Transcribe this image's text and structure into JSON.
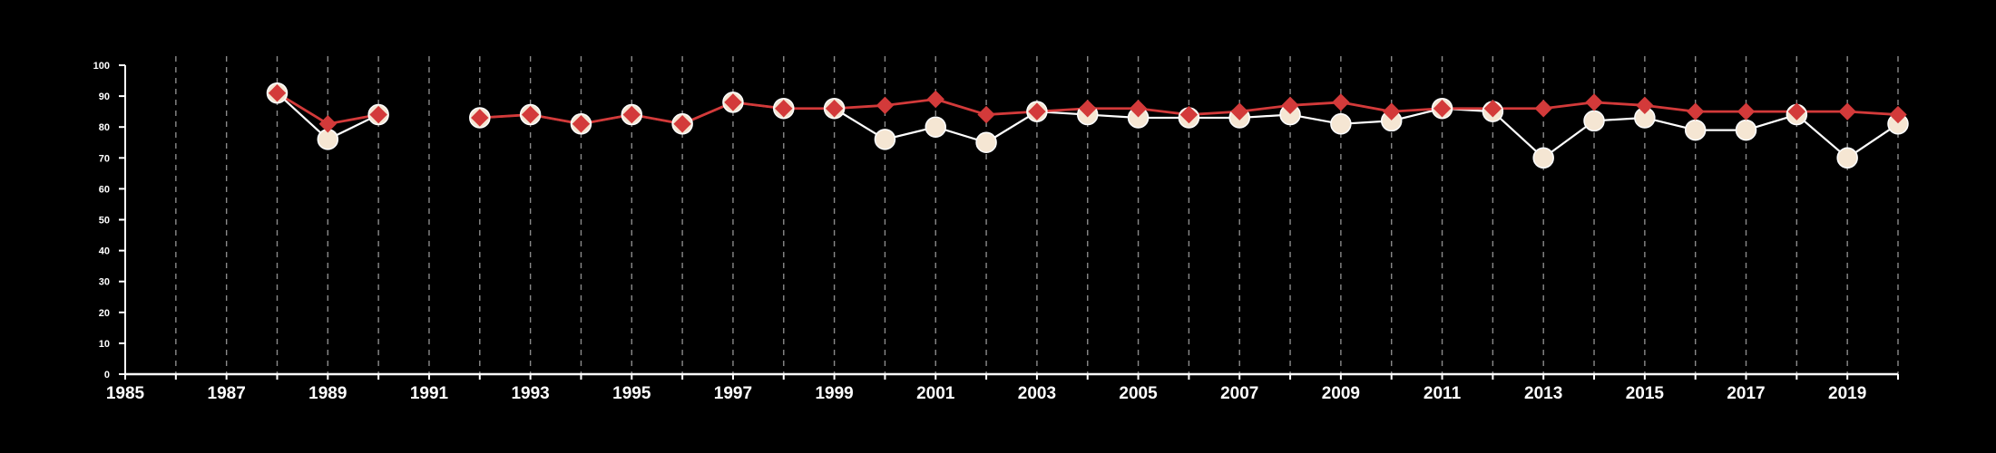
{
  "chart_data": {
    "type": "line",
    "title": "",
    "xlabel": "",
    "ylabel": "",
    "xlim": [
      1985,
      2020
    ],
    "ylim": [
      0,
      100
    ],
    "x_ticks": [
      1985,
      1987,
      1989,
      1991,
      1993,
      1995,
      1997,
      1999,
      2001,
      2003,
      2005,
      2007,
      2009,
      2011,
      2013,
      2015,
      2017,
      2019
    ],
    "x_tick_labels": [
      "1985",
      "1987",
      "1989",
      "1991",
      "1993",
      "1995",
      "1997",
      "1999",
      "2001",
      "2003",
      "2005",
      "2007",
      "2009",
      "2011",
      "2013",
      "2015",
      "2017",
      "2019"
    ],
    "y_ticks": [
      0,
      10,
      20,
      30,
      40,
      50,
      60,
      70,
      80,
      90,
      100
    ],
    "y_tick_labels": [
      "0",
      "10",
      "20",
      "30",
      "40",
      "50",
      "60",
      "70",
      "80",
      "90",
      "100"
    ],
    "vertical_grid_years": [
      1986,
      1987,
      1988,
      1989,
      1990,
      1991,
      1992,
      1993,
      1994,
      1995,
      1996,
      1997,
      1998,
      1999,
      2000,
      2001,
      2002,
      2003,
      2004,
      2005,
      2006,
      2007,
      2008,
      2009,
      2010,
      2011,
      2012,
      2013,
      2014,
      2015,
      2016,
      2017,
      2018,
      2019,
      2020
    ],
    "grid": "vertical dashed",
    "legend": "none",
    "series": [
      {
        "color": "#f5e6d3",
        "line_color": "#ffffff",
        "marker": "circle",
        "segments": [
          {
            "x": [
              1988,
              1989,
              1990
            ],
            "y": [
              91,
              76,
              84
            ]
          },
          {
            "x": [
              1992,
              1993,
              1994,
              1995,
              1996,
              1997,
              1998,
              1999,
              2000,
              2001,
              2002,
              2003,
              2004,
              2005,
              2006,
              2007,
              2008,
              2009,
              2010,
              2011,
              2012,
              2013,
              2014,
              2015,
              2016,
              2017,
              2018,
              2019,
              2020
            ],
            "y": [
              83,
              84,
              81,
              84,
              81,
              88,
              86,
              86,
              76,
              80,
              75,
              85,
              84,
              83,
              83,
              83,
              84,
              81,
              82,
              86,
              85,
              70,
              82,
              83,
              79,
              79,
              84,
              70,
              81
            ]
          }
        ]
      },
      {
        "color": "#d33a3a",
        "line_color": "#d33a3a",
        "marker": "diamond",
        "segments": [
          {
            "x": [
              1988,
              1989,
              1990
            ],
            "y": [
              91,
              81,
              84
            ]
          },
          {
            "x": [
              1992,
              1993,
              1994,
              1995,
              1996,
              1997,
              1998,
              1999,
              2000,
              2001,
              2002,
              2003,
              2004,
              2005,
              2006,
              2007,
              2008,
              2009,
              2010,
              2011,
              2012,
              2013,
              2014,
              2015,
              2016,
              2017,
              2018,
              2019,
              2020
            ],
            "y": [
              83,
              84,
              81,
              84,
              81,
              88,
              86,
              86,
              87,
              89,
              84,
              85,
              86,
              86,
              84,
              85,
              87,
              88,
              85,
              86,
              86,
              86,
              88,
              87,
              85,
              85,
              85,
              85,
              84
            ]
          }
        ]
      }
    ]
  }
}
